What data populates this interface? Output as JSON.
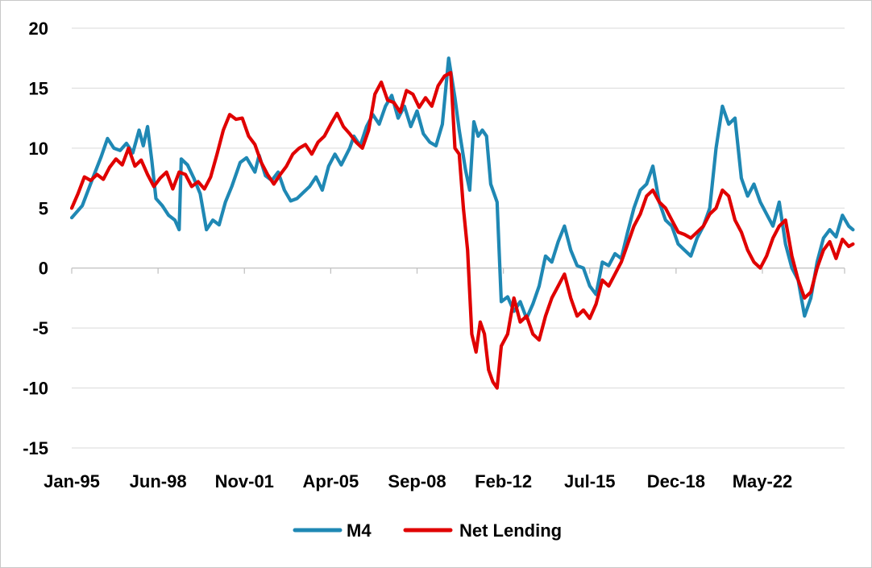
{
  "chart_data": {
    "type": "line",
    "title": "",
    "xlabel": "",
    "ylabel": "",
    "ylim": [
      -15,
      20
    ],
    "yticks": [
      20,
      15,
      10,
      5,
      0,
      -5,
      -10,
      -15
    ],
    "xlim": [
      "1995-01",
      "2025-12"
    ],
    "xticks": [
      {
        "date": "1995-01",
        "label": "Jan-95"
      },
      {
        "date": "1998-06",
        "label": "Jun-98"
      },
      {
        "date": "2001-11",
        "label": "Nov-01"
      },
      {
        "date": "2005-04",
        "label": "Apr-05"
      },
      {
        "date": "2008-09",
        "label": "Sep-08"
      },
      {
        "date": "2012-02",
        "label": "Feb-12"
      },
      {
        "date": "2015-07",
        "label": "Jul-15"
      },
      {
        "date": "2018-12",
        "label": "Dec-18"
      },
      {
        "date": "2022-05",
        "label": "May-22"
      }
    ],
    "grid": true,
    "legend_position": "bottom",
    "series": [
      {
        "name": "M4",
        "color": "#1f88b4",
        "points": [
          [
            "1995-01",
            4.2
          ],
          [
            "1995-06",
            5.2
          ],
          [
            "1995-11",
            7.5
          ],
          [
            "1996-03",
            9.3
          ],
          [
            "1996-06",
            10.8
          ],
          [
            "1996-09",
            10.0
          ],
          [
            "1996-12",
            9.8
          ],
          [
            "1997-03",
            10.4
          ],
          [
            "1997-06",
            9.6
          ],
          [
            "1997-09",
            11.5
          ],
          [
            "1997-11",
            10.2
          ],
          [
            "1998-01",
            11.8
          ],
          [
            "1998-03",
            9.0
          ],
          [
            "1998-05",
            5.8
          ],
          [
            "1998-08",
            5.2
          ],
          [
            "1998-11",
            4.4
          ],
          [
            "1999-02",
            4.0
          ],
          [
            "1999-04",
            3.2
          ],
          [
            "1999-05",
            9.1
          ],
          [
            "1999-08",
            8.6
          ],
          [
            "1999-11",
            7.5
          ],
          [
            "2000-02",
            6.2
          ],
          [
            "2000-05",
            3.2
          ],
          [
            "2000-08",
            4.0
          ],
          [
            "2000-11",
            3.6
          ],
          [
            "2001-02",
            5.5
          ],
          [
            "2001-05",
            6.8
          ],
          [
            "2001-09",
            8.8
          ],
          [
            "2001-12",
            9.2
          ],
          [
            "2002-04",
            8.0
          ],
          [
            "2002-06",
            9.4
          ],
          [
            "2002-09",
            7.7
          ],
          [
            "2002-12",
            7.3
          ],
          [
            "2003-03",
            8.0
          ],
          [
            "2003-06",
            6.5
          ],
          [
            "2003-09",
            5.6
          ],
          [
            "2003-12",
            5.8
          ],
          [
            "2004-03",
            6.3
          ],
          [
            "2004-06",
            6.8
          ],
          [
            "2004-09",
            7.6
          ],
          [
            "2004-12",
            6.5
          ],
          [
            "2005-03",
            8.5
          ],
          [
            "2005-06",
            9.5
          ],
          [
            "2005-09",
            8.6
          ],
          [
            "2006-01",
            10.0
          ],
          [
            "2006-03",
            11.0
          ],
          [
            "2006-06",
            10.2
          ],
          [
            "2006-09",
            11.8
          ],
          [
            "2006-12",
            12.8
          ],
          [
            "2007-03",
            12.0
          ],
          [
            "2007-06",
            13.5
          ],
          [
            "2007-09",
            14.4
          ],
          [
            "2007-12",
            12.5
          ],
          [
            "2008-03",
            13.5
          ],
          [
            "2008-06",
            11.8
          ],
          [
            "2008-09",
            13.1
          ],
          [
            "2008-12",
            11.2
          ],
          [
            "2009-03",
            10.5
          ],
          [
            "2009-06",
            10.2
          ],
          [
            "2009-09",
            12.0
          ],
          [
            "2009-12",
            17.5
          ],
          [
            "2010-03",
            14.2
          ],
          [
            "2010-05",
            11.5
          ],
          [
            "2010-08",
            8.2
          ],
          [
            "2010-10",
            6.5
          ],
          [
            "2010-12",
            12.2
          ],
          [
            "2011-02",
            11.0
          ],
          [
            "2011-04",
            11.5
          ],
          [
            "2011-06",
            11.0
          ],
          [
            "2011-08",
            7.0
          ],
          [
            "2011-11",
            5.5
          ],
          [
            "2012-01",
            -2.8
          ],
          [
            "2012-04",
            -2.4
          ],
          [
            "2012-07",
            -3.6
          ],
          [
            "2012-10",
            -2.8
          ],
          [
            "2013-01",
            -4.2
          ],
          [
            "2013-04",
            -3.0
          ],
          [
            "2013-07",
            -1.5
          ],
          [
            "2013-10",
            1.0
          ],
          [
            "2014-01",
            0.5
          ],
          [
            "2014-04",
            2.2
          ],
          [
            "2014-07",
            3.5
          ],
          [
            "2014-10",
            1.5
          ],
          [
            "2015-01",
            0.2
          ],
          [
            "2015-04",
            0.0
          ],
          [
            "2015-07",
            -1.5
          ],
          [
            "2015-10",
            -2.2
          ],
          [
            "2016-01",
            0.5
          ],
          [
            "2016-04",
            0.2
          ],
          [
            "2016-07",
            1.2
          ],
          [
            "2016-10",
            0.8
          ],
          [
            "2017-01",
            3.0
          ],
          [
            "2017-04",
            5.0
          ],
          [
            "2017-07",
            6.5
          ],
          [
            "2017-10",
            7.0
          ],
          [
            "2018-01",
            8.5
          ],
          [
            "2018-04",
            5.5
          ],
          [
            "2018-07",
            4.0
          ],
          [
            "2018-10",
            3.5
          ],
          [
            "2019-01",
            2.0
          ],
          [
            "2019-04",
            1.5
          ],
          [
            "2019-07",
            1.0
          ],
          [
            "2019-10",
            2.5
          ],
          [
            "2020-01",
            3.5
          ],
          [
            "2020-04",
            5.0
          ],
          [
            "2020-07",
            10.0
          ],
          [
            "2020-10",
            13.5
          ],
          [
            "2021-01",
            12.0
          ],
          [
            "2021-04",
            12.5
          ],
          [
            "2021-07",
            7.5
          ],
          [
            "2021-10",
            6.0
          ],
          [
            "2022-01",
            7.0
          ],
          [
            "2022-04",
            5.5
          ],
          [
            "2022-07",
            4.5
          ],
          [
            "2022-10",
            3.5
          ],
          [
            "2023-01",
            5.5
          ],
          [
            "2023-04",
            2.0
          ],
          [
            "2023-07",
            0.0
          ],
          [
            "2023-10",
            -1.0
          ],
          [
            "2024-01",
            -4.0
          ],
          [
            "2024-04",
            -2.5
          ],
          [
            "2024-07",
            0.5
          ],
          [
            "2024-10",
            2.5
          ],
          [
            "2025-01",
            3.2
          ],
          [
            "2025-04",
            2.6
          ],
          [
            "2025-07",
            4.4
          ],
          [
            "2025-10",
            3.5
          ],
          [
            "2025-12",
            3.2
          ]
        ]
      },
      {
        "name": "Net Lending",
        "color": "#e00000",
        "points": [
          [
            "1995-01",
            5.0
          ],
          [
            "1995-04",
            6.2
          ],
          [
            "1995-07",
            7.6
          ],
          [
            "1995-10",
            7.3
          ],
          [
            "1996-01",
            7.8
          ],
          [
            "1996-04",
            7.4
          ],
          [
            "1996-07",
            8.4
          ],
          [
            "1996-10",
            9.1
          ],
          [
            "1997-01",
            8.6
          ],
          [
            "1997-04",
            10.0
          ],
          [
            "1997-07",
            8.5
          ],
          [
            "1997-10",
            9.0
          ],
          [
            "1998-01",
            7.8
          ],
          [
            "1998-04",
            6.8
          ],
          [
            "1998-07",
            7.5
          ],
          [
            "1998-10",
            8.0
          ],
          [
            "1999-01",
            6.6
          ],
          [
            "1999-04",
            8.0
          ],
          [
            "1999-07",
            7.8
          ],
          [
            "1999-10",
            6.8
          ],
          [
            "2000-01",
            7.2
          ],
          [
            "2000-04",
            6.6
          ],
          [
            "2000-07",
            7.6
          ],
          [
            "2000-10",
            9.5
          ],
          [
            "2001-01",
            11.5
          ],
          [
            "2001-04",
            12.8
          ],
          [
            "2001-07",
            12.4
          ],
          [
            "2001-10",
            12.5
          ],
          [
            "2002-01",
            11.0
          ],
          [
            "2002-04",
            10.3
          ],
          [
            "2002-07",
            8.8
          ],
          [
            "2002-10",
            7.8
          ],
          [
            "2003-01",
            7.0
          ],
          [
            "2003-04",
            7.8
          ],
          [
            "2003-07",
            8.5
          ],
          [
            "2003-10",
            9.5
          ],
          [
            "2004-01",
            10.0
          ],
          [
            "2004-04",
            10.3
          ],
          [
            "2004-07",
            9.5
          ],
          [
            "2004-10",
            10.5
          ],
          [
            "2005-01",
            11.0
          ],
          [
            "2005-04",
            12.0
          ],
          [
            "2005-07",
            12.9
          ],
          [
            "2005-10",
            11.8
          ],
          [
            "2006-01",
            11.2
          ],
          [
            "2006-04",
            10.5
          ],
          [
            "2006-07",
            10.0
          ],
          [
            "2006-10",
            11.5
          ],
          [
            "2007-01",
            14.5
          ],
          [
            "2007-04",
            15.5
          ],
          [
            "2007-07",
            14.0
          ],
          [
            "2007-10",
            13.8
          ],
          [
            "2008-01",
            13.0
          ],
          [
            "2008-04",
            14.8
          ],
          [
            "2008-07",
            14.5
          ],
          [
            "2008-10",
            13.4
          ],
          [
            "2009-01",
            14.2
          ],
          [
            "2009-04",
            13.5
          ],
          [
            "2009-07",
            15.2
          ],
          [
            "2009-10",
            16.0
          ],
          [
            "2010-01",
            16.3
          ],
          [
            "2010-03",
            10.0
          ],
          [
            "2010-05",
            9.5
          ],
          [
            "2010-07",
            5.0
          ],
          [
            "2010-09",
            1.5
          ],
          [
            "2010-11",
            -5.5
          ],
          [
            "2011-01",
            -7.0
          ],
          [
            "2011-03",
            -4.5
          ],
          [
            "2011-05",
            -5.5
          ],
          [
            "2011-07",
            -8.5
          ],
          [
            "2011-09",
            -9.5
          ],
          [
            "2011-11",
            -10.0
          ],
          [
            "2012-01",
            -6.5
          ],
          [
            "2012-04",
            -5.5
          ],
          [
            "2012-07",
            -2.5
          ],
          [
            "2012-10",
            -4.5
          ],
          [
            "2013-01",
            -4.0
          ],
          [
            "2013-04",
            -5.5
          ],
          [
            "2013-07",
            -6.0
          ],
          [
            "2013-10",
            -4.0
          ],
          [
            "2014-01",
            -2.5
          ],
          [
            "2014-04",
            -1.5
          ],
          [
            "2014-07",
            -0.5
          ],
          [
            "2014-10",
            -2.5
          ],
          [
            "2015-01",
            -4.0
          ],
          [
            "2015-04",
            -3.5
          ],
          [
            "2015-07",
            -4.2
          ],
          [
            "2015-10",
            -3.0
          ],
          [
            "2016-01",
            -1.0
          ],
          [
            "2016-04",
            -1.5
          ],
          [
            "2016-07",
            -0.5
          ],
          [
            "2016-10",
            0.5
          ],
          [
            "2017-01",
            2.0
          ],
          [
            "2017-04",
            3.5
          ],
          [
            "2017-07",
            4.5
          ],
          [
            "2017-10",
            6.0
          ],
          [
            "2018-01",
            6.5
          ],
          [
            "2018-04",
            5.5
          ],
          [
            "2018-07",
            5.0
          ],
          [
            "2018-10",
            4.0
          ],
          [
            "2019-01",
            3.0
          ],
          [
            "2019-04",
            2.8
          ],
          [
            "2019-07",
            2.5
          ],
          [
            "2019-10",
            3.0
          ],
          [
            "2020-01",
            3.5
          ],
          [
            "2020-04",
            4.5
          ],
          [
            "2020-07",
            5.0
          ],
          [
            "2020-10",
            6.5
          ],
          [
            "2021-01",
            6.0
          ],
          [
            "2021-04",
            4.0
          ],
          [
            "2021-07",
            3.0
          ],
          [
            "2021-10",
            1.5
          ],
          [
            "2022-01",
            0.5
          ],
          [
            "2022-04",
            0.0
          ],
          [
            "2022-07",
            1.0
          ],
          [
            "2022-10",
            2.5
          ],
          [
            "2023-01",
            3.5
          ],
          [
            "2023-04",
            4.0
          ],
          [
            "2023-07",
            1.0
          ],
          [
            "2023-10",
            -1.0
          ],
          [
            "2024-01",
            -2.5
          ],
          [
            "2024-04",
            -2.0
          ],
          [
            "2024-07",
            0.0
          ],
          [
            "2024-10",
            1.5
          ],
          [
            "2025-01",
            2.2
          ],
          [
            "2025-04",
            0.8
          ],
          [
            "2025-07",
            2.4
          ],
          [
            "2025-10",
            1.8
          ],
          [
            "2025-12",
            2.0
          ]
        ]
      }
    ]
  }
}
